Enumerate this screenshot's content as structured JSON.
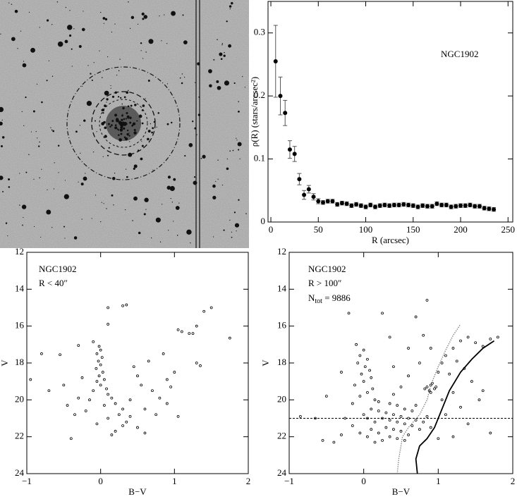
{
  "chart_data": [
    {
      "type": "errorbar",
      "annotation": "NGC1902",
      "x_label": "R (arcsec)",
      "y_label": "ρ(R)  (stars/arcsec²)",
      "color": "#000000",
      "x": [
        5,
        10,
        15,
        20,
        25,
        30,
        35,
        40,
        45,
        50,
        55,
        60,
        65,
        70,
        75,
        80,
        85,
        90,
        95,
        100,
        105,
        110,
        115,
        120,
        125,
        130,
        135,
        140,
        145,
        150,
        155,
        160,
        165,
        170,
        175,
        180,
        185,
        190,
        195,
        200,
        205,
        210,
        215,
        220,
        225,
        230,
        235
      ],
      "values": [
        0.255,
        0.2,
        0.173,
        0.115,
        0.108,
        0.068,
        0.043,
        0.052,
        0.04,
        0.033,
        0.031,
        0.033,
        0.033,
        0.028,
        0.03,
        0.029,
        0.026,
        0.028,
        0.026,
        0.024,
        0.027,
        0.024,
        0.026,
        0.027,
        0.026,
        0.027,
        0.027,
        0.028,
        0.027,
        0.026,
        0.024,
        0.026,
        0.025,
        0.025,
        0.029,
        0.027,
        0.027,
        0.024,
        0.025,
        0.026,
        0.026,
        0.027,
        0.025,
        0.025,
        0.022,
        0.021,
        0.02
      ],
      "errors": [
        0.057,
        0.03,
        0.02,
        0.014,
        0.012,
        0.009,
        0.007,
        0.006,
        0.005,
        0.004,
        0.003,
        0.003,
        0.003,
        0.003,
        0.003,
        0.003,
        0.003,
        0.003,
        0.003,
        0.003,
        0.003,
        0.003,
        0.003,
        0.003,
        0.003,
        0.003,
        0.003,
        0.003,
        0.003,
        0.003,
        0.003,
        0.003,
        0.003,
        0.003,
        0.003,
        0.003,
        0.003,
        0.003,
        0.003,
        0.003,
        0.003,
        0.003,
        0.003,
        0.003,
        0.003,
        0.003,
        0.003
      ],
      "xlim": [
        -3,
        255
      ],
      "xticks": [
        0,
        50,
        100,
        150,
        200,
        250
      ],
      "ylim": [
        0,
        0.35
      ],
      "yticks": [
        0,
        0.1,
        0.2,
        0.3
      ]
    },
    {
      "type": "scatter",
      "annotations": [
        "NGC1902",
        "R < 40″"
      ],
      "x_label": "B−V",
      "y_label": "V",
      "invert_y": true,
      "color": "#000000",
      "xlim": [
        -1,
        2
      ],
      "xticks": [
        {
          "value": -1,
          "label": "−1"
        },
        0,
        1,
        2
      ],
      "ylim": [
        12,
        24
      ],
      "yticks": [
        12,
        14,
        16,
        18,
        20,
        22,
        24
      ],
      "series": [
        {
          "x": [
            0.1,
            0.3,
            0.35,
            0.1,
            1.4,
            1.5,
            1.05,
            1.1,
            1.2,
            1.25,
            1.3,
            1.75,
            -0.1,
            -0.3,
            -0.8,
            -0.55,
            1.3,
            1.35,
            -0.95,
            -0.7,
            -0.02,
            0,
            -0.05,
            0.02,
            -0.03,
            0,
            -0.06,
            0.03,
            -0.02,
            0.05,
            -0.05,
            0,
            0.08,
            -0.1,
            0.1,
            0.15,
            -0.15,
            0.2,
            0.05,
            0.3,
            -0.2,
            0.25,
            0.4,
            0.1,
            0.35,
            -0.05,
            0.5,
            0.2,
            -0.4,
            0.15,
            0.6,
            0.3,
            0.55,
            0.7,
            0.8,
            0.9,
            0.6,
            0.75,
            0.95,
            1,
            0.9,
            1.05,
            -0.3,
            -0.45,
            -0.35,
            -0.5,
            -0.25,
            0.45,
            0.5,
            0.65,
            0.85,
            0.4
          ],
          "y": [
            15,
            14.9,
            14.85,
            15.9,
            15.2,
            15,
            16.2,
            16.3,
            16.4,
            16.4,
            16,
            16.65,
            16.85,
            17.05,
            17.5,
            17.55,
            18,
            18.15,
            18.9,
            19.5,
            17.1,
            17.3,
            17.5,
            17.7,
            17.9,
            18.1,
            18.3,
            18.5,
            18.7,
            18.9,
            19,
            19.2,
            19.4,
            19.5,
            19.7,
            19.9,
            20,
            20.2,
            20.3,
            20.5,
            20.6,
            20.8,
            20.9,
            21,
            21.2,
            21.3,
            21.5,
            21.7,
            22.1,
            21.9,
            21.8,
            21.4,
            19.2,
            19.5,
            19.9,
            20.2,
            20.5,
            20.8,
            19.3,
            18.5,
            18.9,
            20.9,
            19.9,
            20.3,
            20.8,
            19.2,
            18.8,
            18.2,
            18.7,
            17.9,
            17.5,
            20
          ]
        }
      ]
    },
    {
      "type": "scatter",
      "annotations": [
        "NGC1902",
        "R > 100″",
        {
          "main": "N",
          "sub": "tot",
          "rest": " = 9886"
        }
      ],
      "x_label": "B−V",
      "y_label": "V",
      "invert_y": true,
      "color": "#000000",
      "xlim": [
        -1,
        2
      ],
      "xticks": [
        {
          "value": -1,
          "label": "−1"
        },
        0,
        1,
        2
      ],
      "ylim": [
        12,
        24
      ],
      "yticks": [
        12,
        14,
        16,
        18,
        20,
        22,
        24
      ],
      "hline": {
        "value": 21,
        "style": "dashed"
      },
      "series": [
        {
          "x": [
            -0.1,
            0,
            -0.05,
            0.05,
            -0.08,
            0.02,
            0.08,
            -0.03,
            0.1,
            0,
            -0.12,
            0.12,
            0.05,
            -0.05,
            0.15,
            0.2,
            -0.15,
            0.1,
            0.2,
            0.3,
            0.4,
            0.5,
            0.6,
            0.25,
            0.35,
            0.45,
            0.55,
            0.15,
            0.05,
            0.65,
            0.7,
            0.3,
            0.4,
            0.5,
            0.2,
            0.6,
            0.1,
            0.75,
            0.8,
            0.35,
            0.45,
            0.25,
            -0.05,
            -0.15,
            -0.25,
            0,
            0.85,
            0.9,
            0.55,
            0.45,
            0.35,
            0.65,
            0.7,
            0.15,
            0.55,
            -0.3,
            -0.4,
            -0.55,
            0.05,
            0.85,
            0.9,
            0.95,
            0.88,
            0.92,
            0.82,
            0.97,
            0.9,
            1,
            1.05,
            1.1,
            1.2,
            1.3,
            1.4,
            1.5,
            1.6,
            1.7,
            1.8,
            1.25,
            1.15,
            1.35,
            1.45,
            1.2,
            1.05,
            1.3,
            1.55,
            1.6,
            1.1,
            0.8,
            0.9,
            0.75,
            0.6,
            0.5,
            0.4,
            0.7,
            0.35,
            0.25,
            -0.2,
            0.85,
            0.6,
            -0.3,
            -0.5,
            -0.65,
            1.4,
            1.7,
            1.2,
            1,
            -0.85,
            0.4
          ],
          "y": [
            17,
            17.3,
            17.6,
            17.8,
            18,
            18.2,
            18.4,
            18.6,
            18.8,
            19,
            19.2,
            19.4,
            19.6,
            19.8,
            20,
            20.1,
            20.2,
            20.5,
            20.6,
            20.7,
            20.8,
            20.9,
            21,
            21,
            21.1,
            21.2,
            21.3,
            21.2,
            21,
            21.4,
            21.1,
            21.5,
            21.6,
            21.7,
            21.8,
            21.9,
            21.6,
            21.6,
            21.2,
            22,
            22.1,
            22.2,
            21.8,
            21.4,
            21,
            20.8,
            20.9,
            21.5,
            20.5,
            20.3,
            20.2,
            20.6,
            20.3,
            22.3,
            22.2,
            21.9,
            22.3,
            22.2,
            22,
            19.3,
            19.2,
            19.4,
            19.5,
            19.1,
            19.4,
            19.3,
            19.6,
            18.5,
            18,
            17.6,
            17.2,
            16.8,
            16.6,
            16.9,
            17.1,
            16.7,
            16.6,
            17.9,
            18.6,
            18.3,
            19,
            19.6,
            20,
            20.4,
            20,
            19.5,
            20.8,
            16.5,
            17.2,
            18,
            18.7,
            19.3,
            19.7,
            15.5,
            16.6,
            15.3,
            15.3,
            14.6,
            17.2,
            18.5,
            19.8,
            21,
            21.3,
            21.8,
            22,
            22.1,
            20.9,
            18.2
          ]
        },
        {
          "type": "line",
          "style": "dotted",
          "color": "#888888",
          "x": [
            0.45,
            0.47,
            0.5,
            0.52,
            0.6,
            0.75,
            0.85,
            0.9,
            1,
            1.1,
            1.2,
            1.3
          ],
          "y": [
            24,
            23.2,
            22.5,
            22,
            21.5,
            20.8,
            20,
            19.2,
            18.2,
            17.3,
            16.5,
            15.9
          ]
        },
        {
          "type": "line",
          "style": "solid",
          "color": "#000000",
          "x": [
            0.72,
            0.7,
            0.75,
            0.85,
            0.95,
            1.05,
            1.15,
            1.3,
            1.45,
            1.6,
            1.75
          ],
          "y": [
            24,
            23.2,
            22.5,
            22.1,
            21.5,
            20.5,
            19.5,
            18.5,
            17.8,
            17.2,
            16.8
          ]
        }
      ]
    }
  ]
}
